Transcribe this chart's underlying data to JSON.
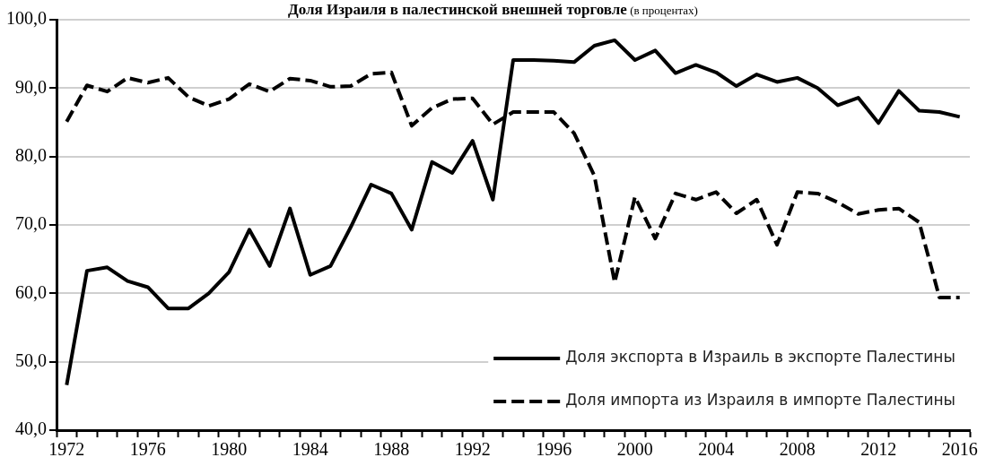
{
  "chart_data": {
    "type": "line",
    "title": "Доля Израиля в палестинской внешней торговле",
    "subtitle": "(в процентах)",
    "categories": [
      "1972",
      null,
      null,
      null,
      "1976",
      null,
      null,
      null,
      "1980",
      null,
      null,
      null,
      "1984",
      null,
      null,
      null,
      "1988",
      null,
      null,
      null,
      "1992",
      null,
      null,
      null,
      "1996",
      null,
      null,
      null,
      "2000",
      null,
      null,
      null,
      "2004",
      null,
      null,
      null,
      "2008",
      null,
      null,
      null,
      "2012",
      null,
      null,
      null,
      "2016"
    ],
    "series": [
      {
        "name": "Доля экспорта в Израиль в экспорте Палестины",
        "color": "#000000",
        "line_style": "solid",
        "values": [
          46.6,
          63.3,
          63.8,
          61.8,
          60.9,
          57.8,
          57.8,
          60.0,
          63.1,
          69.3,
          64.0,
          72.4,
          62.7,
          64.0,
          69.7,
          75.9,
          74.6,
          69.3,
          79.2,
          77.6,
          82.3,
          73.7,
          94.1,
          94.1,
          94.0,
          93.8,
          96.2,
          97.0,
          94.1,
          95.5,
          92.2,
          93.4,
          92.3,
          90.3,
          92.0,
          90.9,
          91.5,
          90.0,
          87.5,
          88.6,
          84.9,
          89.6,
          86.7,
          86.5,
          85.8
        ]
      },
      {
        "name": "Доля импорта из Израиля в импорте Палестины",
        "color": "#000000",
        "line_style": "dashed",
        "values": [
          85.1,
          90.4,
          89.5,
          91.5,
          90.8,
          91.5,
          88.7,
          87.4,
          88.4,
          90.6,
          89.5,
          91.4,
          91.1,
          90.2,
          90.3,
          92.1,
          92.3,
          84.5,
          87.1,
          88.4,
          88.5,
          84.7,
          86.5,
          86.5,
          86.5,
          83.4,
          77.2,
          61.6,
          74.1,
          68.0,
          74.6,
          73.7,
          74.8,
          71.7,
          73.7,
          67.1,
          74.8,
          74.6,
          73.3,
          71.6,
          72.2,
          72.4,
          70.4,
          59.4,
          59.4
        ]
      }
    ],
    "ylim": [
      40,
      100
    ],
    "yticks": [
      {
        "value": 40,
        "label": "40,0"
      },
      {
        "value": 50,
        "label": "50,0"
      },
      {
        "value": 60,
        "label": "60,0"
      },
      {
        "value": 70,
        "label": "70,0"
      },
      {
        "value": 80,
        "label": "80,0"
      },
      {
        "value": 90,
        "label": "90,0"
      },
      {
        "value": 100,
        "label": "100,0"
      }
    ],
    "grid": "y",
    "legend": "bottom right",
    "marker": "none"
  }
}
